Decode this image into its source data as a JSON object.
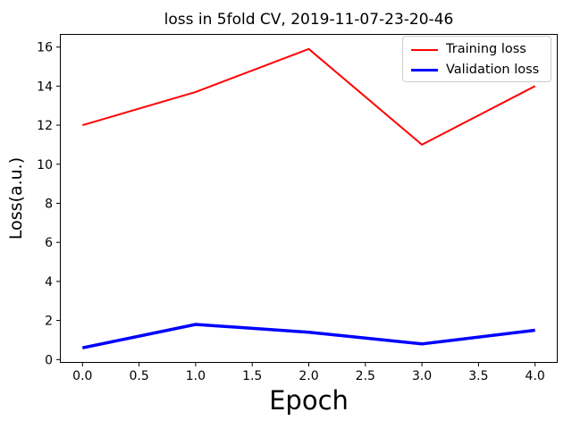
{
  "window": {
    "background_color": "#ffffff"
  },
  "chart_data": {
    "type": "line",
    "title": "loss in 5fold CV, 2019-11-07-23-20-46",
    "xlabel": "Epoch",
    "ylabel": "Loss(a.u.)",
    "x": [
      0,
      1,
      2,
      3,
      4
    ],
    "series": [
      {
        "name": "Training loss",
        "color": "#ff0000",
        "linewidth": 2,
        "values": [
          12.0,
          13.7,
          15.9,
          11.0,
          14.0
        ]
      },
      {
        "name": "Validation loss",
        "color": "#0000ff",
        "linewidth": 3.5,
        "values": [
          0.6,
          1.8,
          1.4,
          0.8,
          1.5
        ]
      }
    ],
    "xlim": [
      -0.2,
      4.2
    ],
    "ylim": [
      -0.17,
      16.67
    ],
    "xticks": [
      0.0,
      0.5,
      1.0,
      1.5,
      2.0,
      2.5,
      3.0,
      3.5,
      4.0
    ],
    "xtick_labels": [
      "0.0",
      "0.5",
      "1.0",
      "1.5",
      "2.0",
      "2.5",
      "3.0",
      "3.5",
      "4.0"
    ],
    "yticks": [
      0,
      2,
      4,
      6,
      8,
      10,
      12,
      14,
      16
    ],
    "ytick_labels": [
      "0",
      "2",
      "4",
      "6",
      "8",
      "10",
      "12",
      "14",
      "16"
    ],
    "legend_position": "upper right",
    "legend_entries": [
      "Training loss",
      "Validation loss"
    ],
    "grid": false,
    "spine_color": "#000000",
    "tick_color": "#000000",
    "legend_border_color": "#cccccc"
  }
}
